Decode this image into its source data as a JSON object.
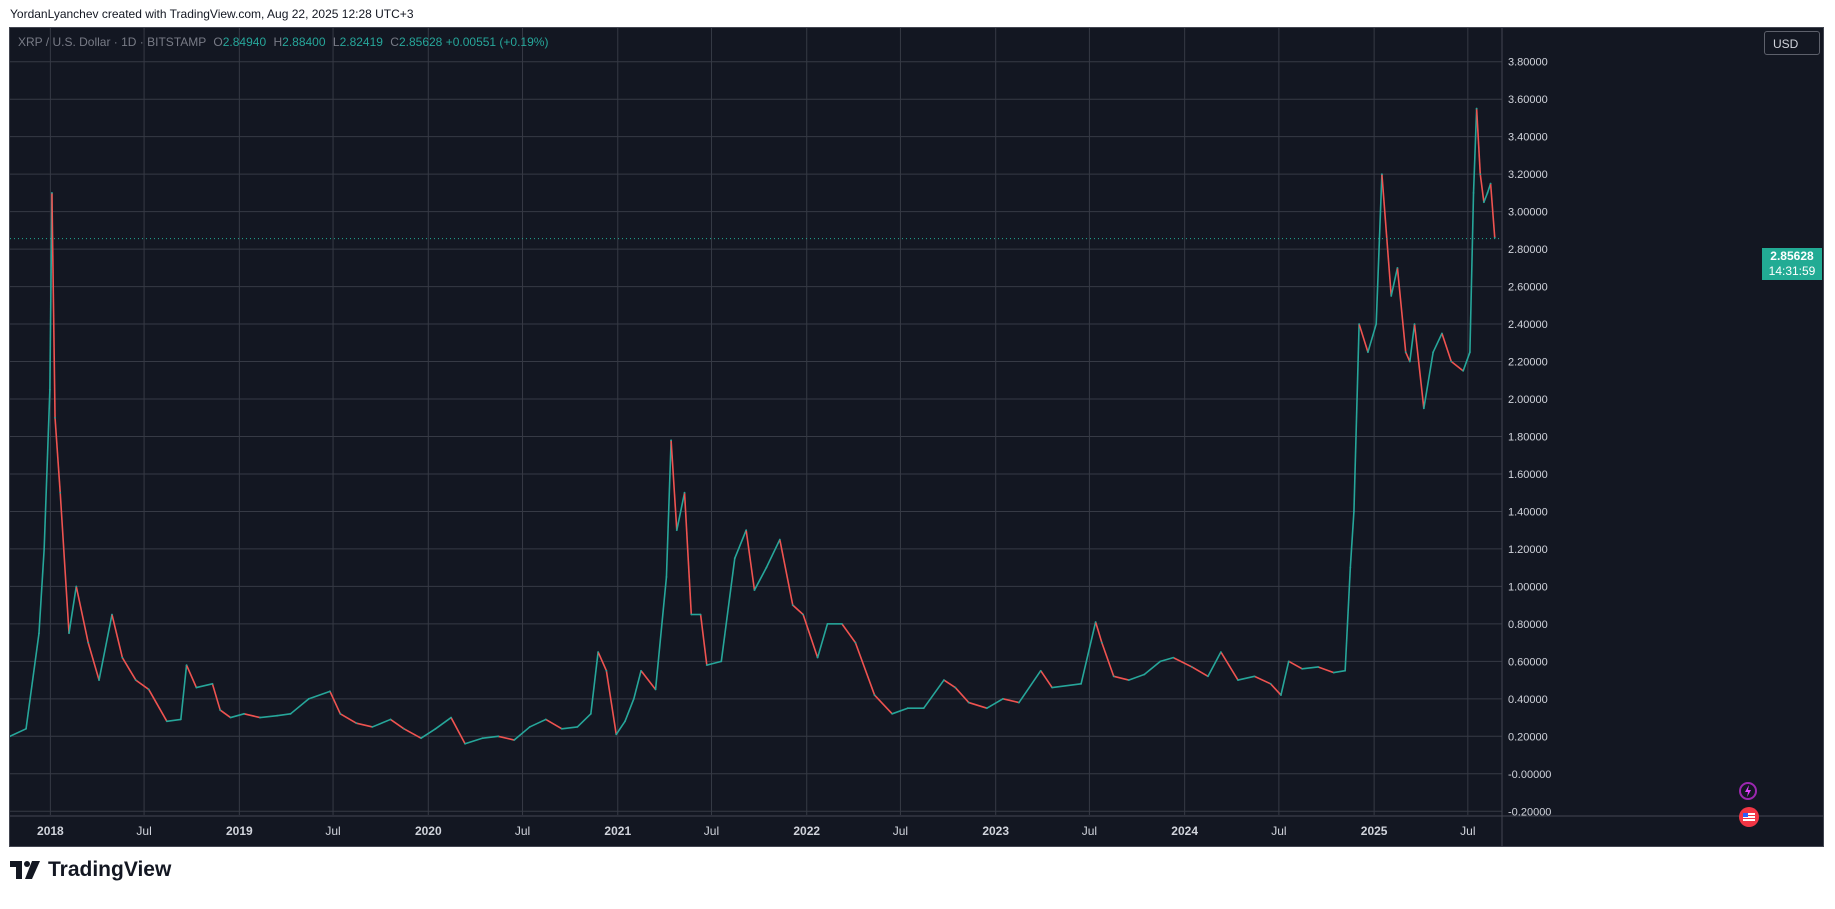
{
  "header": {
    "credit": "YordanLyanchev created with TradingView.com, Aug 22, 2025 12:28 UTC+3"
  },
  "legend": {
    "symbol": "XRP / U.S. Dollar · 1D · BITSTAMP",
    "open_label": "O",
    "open": "2.84940",
    "high_label": "H",
    "high": "2.88400",
    "low_label": "L",
    "low": "2.82419",
    "close_label": "C",
    "close": "2.85628",
    "change": "+0.00551 (+0.19%)"
  },
  "currency_button": "USD",
  "last_price": {
    "price": "2.85628",
    "countdown": "14:31:59"
  },
  "brand": {
    "name": "TradingView"
  },
  "colors": {
    "up": "#26a69a",
    "down": "#ef5350",
    "background": "#131722",
    "grid": "#363a45",
    "text": "#d1d4dc",
    "badge": "#22ab94"
  },
  "chart_data": {
    "type": "line",
    "y_ticks": [
      "3.80000",
      "3.60000",
      "3.40000",
      "3.20000",
      "3.00000",
      "2.80000",
      "2.60000",
      "2.40000",
      "2.20000",
      "2.00000",
      "1.80000",
      "1.60000",
      "1.40000",
      "1.20000",
      "1.00000",
      "0.80000",
      "0.60000",
      "0.40000",
      "0.20000",
      "-0.00000",
      "-0.20000"
    ],
    "x_ticks": [
      {
        "label": "2018",
        "date": "2018-01-01",
        "bold": true
      },
      {
        "label": "Jul",
        "date": "2018-07-01",
        "bold": false
      },
      {
        "label": "2019",
        "date": "2019-01-01",
        "bold": true
      },
      {
        "label": "Jul",
        "date": "2019-07-01",
        "bold": false
      },
      {
        "label": "2020",
        "date": "2020-01-01",
        "bold": true
      },
      {
        "label": "Jul",
        "date": "2020-07-01",
        "bold": false
      },
      {
        "label": "2021",
        "date": "2021-01-01",
        "bold": true
      },
      {
        "label": "Jul",
        "date": "2021-07-01",
        "bold": false
      },
      {
        "label": "2022",
        "date": "2022-01-01",
        "bold": true
      },
      {
        "label": "Jul",
        "date": "2022-07-01",
        "bold": false
      },
      {
        "label": "2023",
        "date": "2023-01-01",
        "bold": true
      },
      {
        "label": "Jul",
        "date": "2023-07-01",
        "bold": false
      },
      {
        "label": "2024",
        "date": "2024-01-01",
        "bold": true
      },
      {
        "label": "Jul",
        "date": "2024-07-01",
        "bold": false
      },
      {
        "label": "2025",
        "date": "2025-01-01",
        "bold": true
      },
      {
        "label": "Jul",
        "date": "2025-07-01",
        "bold": false
      }
    ],
    "x_range": [
      "2017-10-15",
      "2025-09-05"
    ],
    "ylim": [
      -0.22,
      3.98
    ],
    "last_price": 2.85628,
    "series": [
      {
        "x": [
          "2017-10-15",
          "2017-11-15",
          "2017-12-10",
          "2017-12-20",
          "2017-12-31",
          "2018-01-04",
          "2018-01-10",
          "2018-01-20",
          "2018-02-06",
          "2018-02-20",
          "2018-03-15",
          "2018-04-05",
          "2018-04-30",
          "2018-05-20",
          "2018-06-15",
          "2018-07-10",
          "2018-08-14",
          "2018-09-10",
          "2018-09-21",
          "2018-10-10",
          "2018-11-10",
          "2018-11-25",
          "2018-12-15",
          "2019-01-10",
          "2019-02-10",
          "2019-03-15",
          "2019-04-10",
          "2019-05-15",
          "2019-06-25",
          "2019-07-15",
          "2019-08-15",
          "2019-09-15",
          "2019-10-20",
          "2019-11-15",
          "2019-12-18",
          "2020-01-15",
          "2020-02-14",
          "2020-03-12",
          "2020-04-15",
          "2020-05-15",
          "2020-06-15",
          "2020-07-15",
          "2020-08-15",
          "2020-09-15",
          "2020-10-15",
          "2020-11-10",
          "2020-11-24",
          "2020-12-10",
          "2020-12-29",
          "2021-01-15",
          "2021-02-01",
          "2021-02-15",
          "2021-03-15",
          "2021-04-05",
          "2021-04-14",
          "2021-04-25",
          "2021-05-10",
          "2021-05-23",
          "2021-06-10",
          "2021-06-22",
          "2021-07-20",
          "2021-08-15",
          "2021-09-06",
          "2021-09-22",
          "2021-10-15",
          "2021-11-10",
          "2021-12-05",
          "2021-12-25",
          "2022-01-22",
          "2022-02-10",
          "2022-03-10",
          "2022-04-05",
          "2022-05-12",
          "2022-06-15",
          "2022-07-15",
          "2022-08-15",
          "2022-09-23",
          "2022-10-15",
          "2022-11-10",
          "2022-12-15",
          "2023-01-15",
          "2023-02-15",
          "2023-03-29",
          "2023-04-20",
          "2023-06-15",
          "2023-07-13",
          "2023-07-25",
          "2023-08-17",
          "2023-09-15",
          "2023-10-15",
          "2023-11-15",
          "2023-12-10",
          "2024-01-15",
          "2024-02-15",
          "2024-03-11",
          "2024-04-13",
          "2024-05-15",
          "2024-06-15",
          "2024-07-05",
          "2024-07-20",
          "2024-08-15",
          "2024-09-15",
          "2024-10-15",
          "2024-11-06",
          "2024-11-16",
          "2024-11-23",
          "2024-12-03",
          "2024-12-20",
          "2025-01-05",
          "2025-01-16",
          "2025-02-03",
          "2025-02-15",
          "2025-03-03",
          "2025-03-11",
          "2025-03-20",
          "2025-04-07",
          "2025-04-25",
          "2025-05-12",
          "2025-05-30",
          "2025-06-22",
          "2025-07-05",
          "2025-07-12",
          "2025-07-18",
          "2025-07-25",
          "2025-08-01",
          "2025-08-08",
          "2025-08-14",
          "2025-08-22"
        ],
        "y": [
          0.2,
          0.24,
          0.75,
          1.2,
          2.05,
          3.1,
          1.9,
          1.5,
          0.75,
          1.0,
          0.7,
          0.5,
          0.85,
          0.62,
          0.5,
          0.45,
          0.28,
          0.29,
          0.58,
          0.46,
          0.48,
          0.34,
          0.3,
          0.32,
          0.3,
          0.31,
          0.32,
          0.4,
          0.44,
          0.32,
          0.27,
          0.25,
          0.29,
          0.24,
          0.19,
          0.24,
          0.3,
          0.16,
          0.19,
          0.2,
          0.18,
          0.25,
          0.29,
          0.24,
          0.25,
          0.32,
          0.65,
          0.55,
          0.21,
          0.28,
          0.4,
          0.55,
          0.45,
          1.05,
          1.78,
          1.3,
          1.5,
          0.85,
          0.85,
          0.58,
          0.6,
          1.15,
          1.3,
          0.98,
          1.1,
          1.25,
          0.9,
          0.85,
          0.62,
          0.8,
          0.8,
          0.7,
          0.42,
          0.32,
          0.35,
          0.35,
          0.5,
          0.46,
          0.38,
          0.35,
          0.4,
          0.38,
          0.55,
          0.46,
          0.48,
          0.81,
          0.7,
          0.52,
          0.5,
          0.53,
          0.6,
          0.62,
          0.57,
          0.52,
          0.65,
          0.5,
          0.52,
          0.48,
          0.42,
          0.6,
          0.56,
          0.57,
          0.54,
          0.55,
          1.1,
          1.4,
          2.4,
          2.25,
          2.4,
          3.2,
          2.55,
          2.7,
          2.25,
          2.2,
          2.4,
          1.95,
          2.25,
          2.35,
          2.2,
          2.15,
          2.25,
          3.1,
          3.55,
          3.2,
          3.05,
          3.1,
          3.15,
          2.86
        ]
      }
    ]
  }
}
